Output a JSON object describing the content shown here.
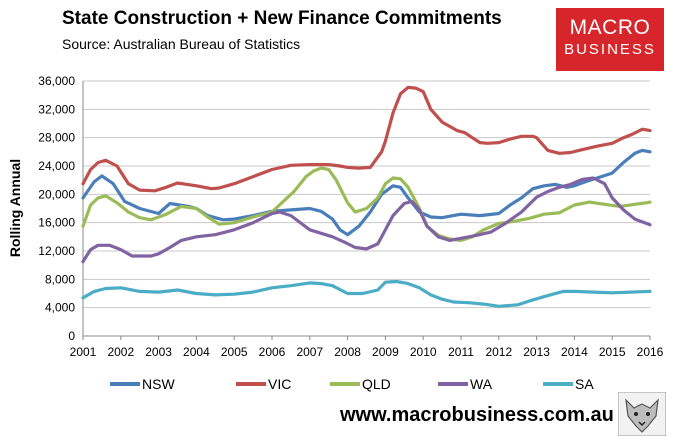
{
  "header": {
    "title": "State Construction + New Finance Commitments",
    "subtitle": "Source: Australian Bureau of Statistics"
  },
  "logo": {
    "line1": "MACRO",
    "line2": "BUSINESS",
    "color": "#d7262b"
  },
  "footer": {
    "url": "www.macrobusiness.com.au"
  },
  "chart_data": {
    "type": "line",
    "title": "State Construction + New Finance Commitments",
    "xlabel": "",
    "ylabel": "Rolling Annual",
    "xlim": [
      2001,
      2016
    ],
    "ylim": [
      0,
      36000
    ],
    "yticks": [
      0,
      4000,
      8000,
      12000,
      16000,
      20000,
      24000,
      28000,
      32000,
      36000
    ],
    "ytick_labels": [
      "0",
      "4,000",
      "8,000",
      "12,000",
      "16,000",
      "20,000",
      "24,000",
      "28,000",
      "32,000",
      "36,000"
    ],
    "xticks": [
      2001,
      2002,
      2003,
      2004,
      2005,
      2006,
      2007,
      2008,
      2009,
      2010,
      2011,
      2012,
      2013,
      2014,
      2015,
      2016
    ],
    "xtick_labels": [
      "2001",
      "2002",
      "2003",
      "2004",
      "2005",
      "2006",
      "2007",
      "2008",
      "2009",
      "2010",
      "2011",
      "2012",
      "2013",
      "2014",
      "2015",
      "2016"
    ],
    "grid": true,
    "legend_position": "bottom",
    "series": [
      {
        "name": "NSW",
        "color": "#4a7ebb",
        "x": [
          2001.0,
          2001.3,
          2001.5,
          2001.8,
          2002.1,
          2002.5,
          2003.0,
          2003.3,
          2003.8,
          2004.0,
          2004.3,
          2004.7,
          2005.0,
          2005.5,
          2006.0,
          2006.5,
          2007.0,
          2007.3,
          2007.6,
          2007.8,
          2008.0,
          2008.3,
          2008.6,
          2008.9,
          2009.2,
          2009.4,
          2009.6,
          2009.9,
          2010.2,
          2010.5,
          2010.8,
          2011.0,
          2011.5,
          2012.0,
          2012.3,
          2012.6,
          2012.9,
          2013.2,
          2013.5,
          2013.8,
          2014.0,
          2014.3,
          2014.6,
          2015.0,
          2015.3,
          2015.6,
          2015.8,
          2016.0
        ],
        "y": [
          19500,
          21800,
          22600,
          21500,
          19000,
          18000,
          17300,
          18700,
          18300,
          18000,
          17000,
          16400,
          16500,
          17000,
          17600,
          17800,
          18000,
          17600,
          16500,
          15000,
          14300,
          15500,
          17500,
          20000,
          21200,
          21000,
          19500,
          17500,
          16800,
          16700,
          17000,
          17200,
          17000,
          17300,
          18500,
          19500,
          20800,
          21200,
          21400,
          21000,
          21200,
          21800,
          22300,
          23000,
          24500,
          25800,
          26200,
          26000
        ]
      },
      {
        "name": "VIC",
        "color": "#c0504d",
        "x": [
          2001.0,
          2001.2,
          2001.4,
          2001.6,
          2001.9,
          2002.2,
          2002.5,
          2002.9,
          2003.2,
          2003.5,
          2004.0,
          2004.4,
          2004.6,
          2005.0,
          2005.5,
          2006.0,
          2006.5,
          2007.0,
          2007.5,
          2007.8,
          2008.0,
          2008.3,
          2008.6,
          2008.9,
          2009.0,
          2009.2,
          2009.4,
          2009.6,
          2009.8,
          2010.0,
          2010.2,
          2010.5,
          2010.9,
          2011.1,
          2011.3,
          2011.5,
          2011.7,
          2012.0,
          2012.3,
          2012.6,
          2012.9,
          2013.0,
          2013.3,
          2013.6,
          2013.9,
          2014.2,
          2014.6,
          2015.0,
          2015.3,
          2015.5,
          2015.8,
          2016.0
        ],
        "y": [
          21500,
          23500,
          24500,
          24800,
          24000,
          21500,
          20600,
          20500,
          21000,
          21600,
          21200,
          20800,
          20900,
          21500,
          22500,
          23500,
          24100,
          24200,
          24200,
          24000,
          23800,
          23700,
          23800,
          26000,
          27500,
          31500,
          34200,
          35100,
          35000,
          34500,
          32000,
          30200,
          29000,
          28700,
          28000,
          27300,
          27200,
          27300,
          27800,
          28200,
          28200,
          28000,
          26200,
          25800,
          25900,
          26300,
          26800,
          27200,
          28000,
          28400,
          29200,
          29000
        ]
      },
      {
        "name": "QLD",
        "color": "#9bbb59",
        "x": [
          2001.0,
          2001.2,
          2001.4,
          2001.6,
          2001.9,
          2002.2,
          2002.5,
          2002.8,
          2003.2,
          2003.6,
          2004.0,
          2004.3,
          2004.6,
          2005.0,
          2005.5,
          2006.0,
          2006.3,
          2006.6,
          2006.9,
          2007.1,
          2007.3,
          2007.5,
          2007.7,
          2008.0,
          2008.2,
          2008.5,
          2008.8,
          2009.0,
          2009.2,
          2009.4,
          2009.6,
          2009.9,
          2010.1,
          2010.4,
          2010.7,
          2011.0,
          2011.3,
          2011.6,
          2012.0,
          2012.4,
          2012.8,
          2013.2,
          2013.6,
          2014.0,
          2014.4,
          2014.8,
          2015.2,
          2015.6,
          2015.9,
          2016.0
        ],
        "y": [
          15500,
          18500,
          19500,
          19800,
          18800,
          17500,
          16700,
          16400,
          17200,
          18300,
          18000,
          16800,
          15800,
          16000,
          16800,
          17500,
          19000,
          20500,
          22500,
          23300,
          23700,
          23500,
          22000,
          18800,
          17500,
          18000,
          19500,
          21500,
          22300,
          22200,
          21000,
          18000,
          15500,
          14200,
          13700,
          13500,
          14000,
          15000,
          15900,
          16200,
          16600,
          17200,
          17400,
          18500,
          18900,
          18600,
          18300,
          18600,
          18800,
          18900
        ]
      },
      {
        "name": "WA",
        "color": "#8064a2",
        "x": [
          2001.0,
          2001.2,
          2001.4,
          2001.7,
          2002.0,
          2002.3,
          2002.8,
          2003.0,
          2003.3,
          2003.6,
          2004.0,
          2004.5,
          2005.0,
          2005.5,
          2006.0,
          2006.2,
          2006.5,
          2006.8,
          2007.0,
          2007.3,
          2007.6,
          2007.9,
          2008.2,
          2008.5,
          2008.8,
          2009.0,
          2009.2,
          2009.5,
          2009.7,
          2009.9,
          2010.1,
          2010.4,
          2010.7,
          2011.0,
          2011.4,
          2011.8,
          2012.2,
          2012.6,
          2013.0,
          2013.3,
          2013.6,
          2013.9,
          2014.2,
          2014.5,
          2014.8,
          2015.0,
          2015.3,
          2015.6,
          2016.0
        ],
        "y": [
          10500,
          12200,
          12800,
          12800,
          12200,
          11300,
          11300,
          11600,
          12500,
          13500,
          14000,
          14300,
          15000,
          16000,
          17300,
          17500,
          17000,
          15800,
          15000,
          14500,
          14000,
          13300,
          12500,
          12300,
          13000,
          15000,
          17000,
          18700,
          19000,
          17800,
          15500,
          14000,
          13500,
          13800,
          14200,
          14700,
          16000,
          17500,
          19600,
          20400,
          21000,
          21400,
          22100,
          22300,
          21500,
          19500,
          17800,
          16500,
          15700
        ]
      },
      {
        "name": "SA",
        "color": "#4bacc6",
        "x": [
          2001.0,
          2001.3,
          2001.6,
          2002.0,
          2002.5,
          2003.0,
          2003.5,
          2004.0,
          2004.5,
          2005.0,
          2005.5,
          2006.0,
          2006.5,
          2007.0,
          2007.3,
          2007.6,
          2008.0,
          2008.4,
          2008.8,
          2009.0,
          2009.3,
          2009.6,
          2009.9,
          2010.2,
          2010.5,
          2010.8,
          2011.2,
          2011.6,
          2012.0,
          2012.5,
          2012.9,
          2013.3,
          2013.7,
          2014.0,
          2014.5,
          2015.0,
          2015.5,
          2016.0
        ],
        "y": [
          5400,
          6300,
          6700,
          6800,
          6300,
          6200,
          6500,
          6000,
          5800,
          5900,
          6200,
          6800,
          7100,
          7500,
          7400,
          7100,
          6000,
          6000,
          6500,
          7600,
          7700,
          7400,
          6800,
          5800,
          5200,
          4800,
          4700,
          4500,
          4200,
          4400,
          5100,
          5700,
          6300,
          6300,
          6200,
          6100,
          6200,
          6300
        ]
      }
    ]
  }
}
